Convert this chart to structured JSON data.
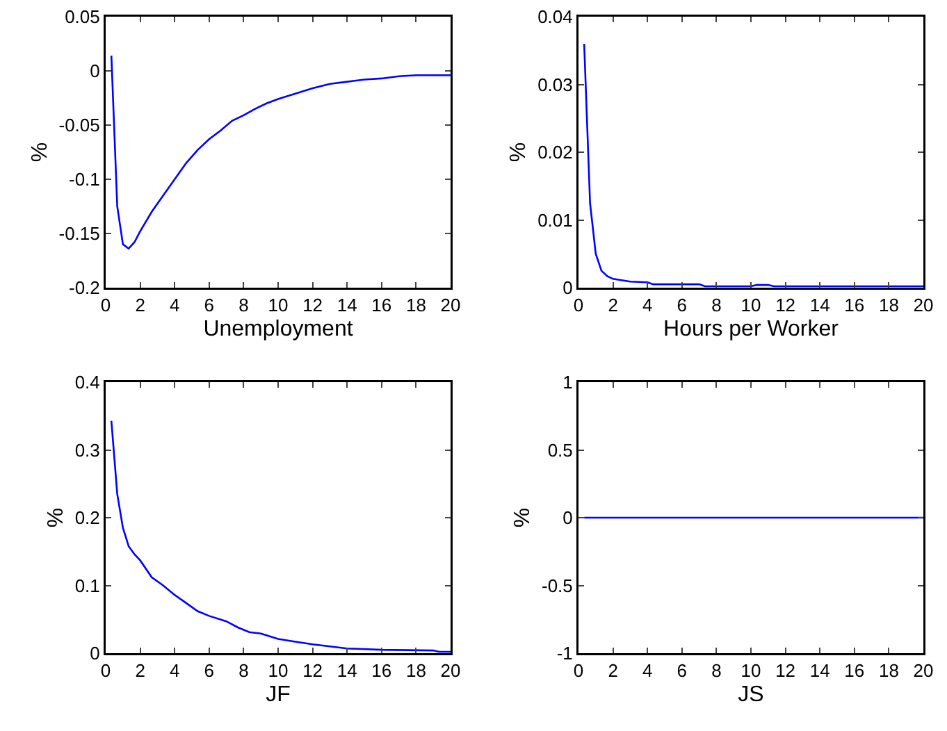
{
  "chart_data": [
    {
      "type": "line",
      "xlabel": "Unemployment",
      "ylabel": "%",
      "xlim": [
        0,
        20
      ],
      "xticks": [
        0,
        2,
        4,
        6,
        8,
        10,
        12,
        14,
        16,
        18,
        20
      ],
      "ylim": [
        -0.2,
        0.05
      ],
      "yticks": [
        -0.2,
        -0.15,
        -0.1,
        -0.05,
        0,
        0.05
      ],
      "grid": false,
      "line_style": "solid",
      "marker": "none",
      "series": [
        {
          "color": "#0000ff",
          "x": [
            0.33,
            0.67,
            1,
            1.33,
            1.67,
            2,
            2.67,
            3.33,
            4,
            4.67,
            5.33,
            6,
            6.67,
            7.33,
            8,
            8.67,
            9.33,
            10,
            11,
            12,
            13,
            14,
            15,
            16,
            17,
            18,
            19,
            20
          ],
          "values": [
            0.014,
            -0.125,
            -0.16,
            -0.164,
            -0.158,
            -0.148,
            -0.13,
            -0.115,
            -0.1,
            -0.085,
            -0.073,
            -0.063,
            -0.055,
            -0.046,
            -0.041,
            -0.035,
            -0.03,
            -0.026,
            -0.021,
            -0.016,
            -0.012,
            -0.01,
            -0.008,
            -0.007,
            -0.005,
            -0.004,
            -0.004,
            -0.004
          ]
        }
      ]
    },
    {
      "type": "line",
      "xlabel": "Hours per Worker",
      "ylabel": "%",
      "xlim": [
        0,
        20
      ],
      "xticks": [
        0,
        2,
        4,
        6,
        8,
        10,
        12,
        14,
        16,
        18,
        20
      ],
      "ylim": [
        0,
        0.04
      ],
      "yticks": [
        0,
        0.01,
        0.02,
        0.03,
        0.04
      ],
      "grid": false,
      "line_style": "solid",
      "marker": "none",
      "series": [
        {
          "color": "#0000ff",
          "x": [
            0.33,
            0.67,
            1,
            1.33,
            1.67,
            2,
            3,
            4,
            4.33,
            7,
            7.33,
            10,
            10.33,
            11,
            11.33,
            20
          ],
          "values": [
            0.036,
            0.0125,
            0.005,
            0.0025,
            0.0017,
            0.0013,
            0.0009,
            0.0008,
            0.0005,
            0.0005,
            0.0002,
            0.0002,
            0.0004,
            0.0004,
            0.0002,
            0.0002
          ]
        }
      ]
    },
    {
      "type": "line",
      "xlabel": "JF",
      "ylabel": "%",
      "xlim": [
        0,
        20
      ],
      "xticks": [
        0,
        2,
        4,
        6,
        8,
        10,
        12,
        14,
        16,
        18,
        20
      ],
      "ylim": [
        0,
        0.4
      ],
      "yticks": [
        0,
        0.1,
        0.2,
        0.3,
        0.4
      ],
      "grid": false,
      "line_style": "solid",
      "marker": "none",
      "series": [
        {
          "color": "#0000ff",
          "x": [
            0.33,
            0.67,
            1,
            1.33,
            1.67,
            2,
            2.67,
            3.33,
            4,
            4.67,
            5.33,
            6,
            7,
            7.67,
            8.33,
            9,
            10,
            11,
            12,
            13,
            14,
            16,
            19,
            19.33,
            20
          ],
          "values": [
            0.343,
            0.235,
            0.185,
            0.158,
            0.146,
            0.137,
            0.112,
            0.1,
            0.086,
            0.074,
            0.062,
            0.055,
            0.047,
            0.038,
            0.031,
            0.029,
            0.021,
            0.017,
            0.013,
            0.01,
            0.007,
            0.005,
            0.004,
            0.002,
            0.002
          ]
        }
      ]
    },
    {
      "type": "line",
      "xlabel": "JS",
      "ylabel": "%",
      "xlim": [
        0,
        20
      ],
      "xticks": [
        0,
        2,
        4,
        6,
        8,
        10,
        12,
        14,
        16,
        18,
        20
      ],
      "ylim": [
        -1,
        1
      ],
      "yticks": [
        -1,
        -0.5,
        0,
        0.5,
        1
      ],
      "grid": false,
      "line_style": "solid",
      "marker": "none",
      "series": [
        {
          "color": "#0000ff",
          "x": [
            0.33,
            20
          ],
          "values": [
            0,
            0
          ]
        }
      ]
    }
  ]
}
